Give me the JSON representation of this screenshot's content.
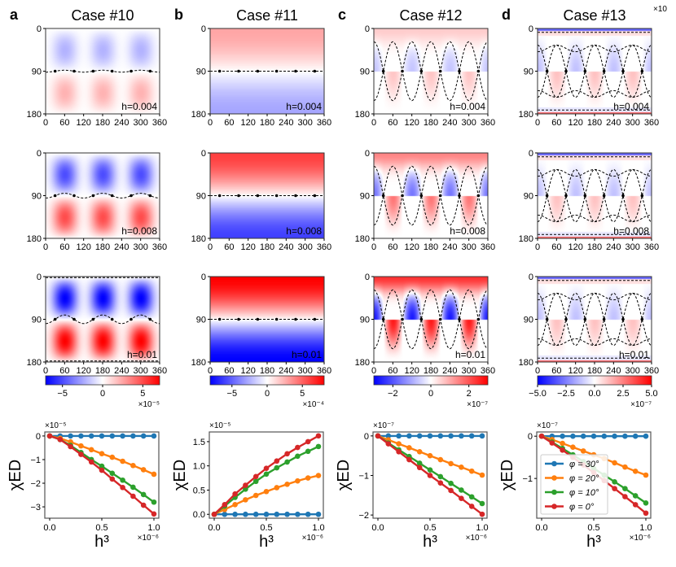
{
  "colormap": {
    "low": "#0000ff",
    "mid": "#ffffff",
    "high": "#ff0000"
  },
  "heatmap_axes": {
    "x_ticks": [
      0,
      60,
      120,
      180,
      240,
      300,
      360
    ],
    "x_tick_labels": [
      "0",
      "60",
      "120",
      "180",
      "240",
      "300",
      "360"
    ],
    "y_ticks": [
      0,
      90,
      180
    ],
    "y_tick_labels": [
      "0",
      "90",
      "180"
    ]
  },
  "panels": [
    {
      "label": "a",
      "title": "Case #10",
      "heatmaps": [
        {
          "h_label": "h=0.004"
        },
        {
          "h_label": "h=0.008"
        },
        {
          "h_label": "h=0.01"
        }
      ],
      "colorbar": {
        "range": [
          -7.1,
          7.1
        ],
        "ticks": [
          -5,
          0,
          5
        ],
        "tick_labels": [
          "−5",
          "0",
          "5"
        ],
        "exponent": "×10⁻⁵"
      }
    },
    {
      "label": "b",
      "title": "Case #11",
      "heatmaps": [
        {
          "h_label": "h=0.004"
        },
        {
          "h_label": "h=0.008"
        },
        {
          "h_label": "h=0.01"
        }
      ],
      "colorbar": {
        "range": [
          -8.1,
          8.1
        ],
        "ticks": [
          -5,
          0,
          5
        ],
        "tick_labels": [
          "−5",
          "0",
          "5"
        ],
        "exponent": "×10⁻⁴"
      }
    },
    {
      "label": "c",
      "title": "Case #12",
      "heatmaps": [
        {
          "h_label": "h=0.004"
        },
        {
          "h_label": "h=0.008"
        },
        {
          "h_label": "h=0.01"
        }
      ],
      "colorbar": {
        "range": [
          -3,
          3
        ],
        "ticks": [
          -2,
          0,
          2
        ],
        "tick_labels": [
          "−2",
          "0",
          "2"
        ],
        "exponent": "×10⁻⁷"
      }
    },
    {
      "label": "d",
      "title": "Case #13",
      "top_offset": "×10",
      "heatmaps": [
        {
          "h_label": "h=0.004"
        },
        {
          "h_label": "h=0.008"
        },
        {
          "h_label": "h=0.01"
        }
      ],
      "colorbar": {
        "range": [
          -5,
          5
        ],
        "ticks": [
          -5,
          -2.5,
          0,
          2.5,
          5
        ],
        "tick_labels": [
          "−5.0",
          "−2.5",
          "0.0",
          "2.5",
          "5.0"
        ],
        "exponent": "×10⁻⁷"
      }
    }
  ],
  "series_colors": {
    "phi30": "#1f77b4",
    "phi20": "#ff7f0e",
    "phi10": "#2ca02c",
    "phi0": "#d62728"
  },
  "chart_data": [
    {
      "type": "line",
      "panel": "a",
      "xlabel": "h³",
      "ylabel": "χED",
      "x_offset": "×10⁻⁶",
      "y_offset": "×10⁻⁵",
      "xlim": [
        -0.047,
        1.047
      ],
      "ylim": [
        -3.48,
        0.17
      ],
      "grid": false,
      "x_ticks": [
        0,
        0.5,
        1.0
      ],
      "x_tick_labels": [
        "0.0",
        "0.5",
        "1.0"
      ],
      "y_ticks": [
        0,
        -1,
        -2,
        -3
      ],
      "y_tick_labels": [
        "0",
        "−1",
        "−2",
        "−3"
      ],
      "x": [
        0,
        0.1,
        0.2,
        0.3,
        0.4,
        0.5,
        0.6,
        0.7,
        0.8,
        0.9,
        1.0
      ],
      "series": [
        {
          "name": "φ = 30°",
          "values": [
            0,
            0,
            0,
            0,
            0,
            0,
            0,
            0,
            0,
            0,
            0
          ]
        },
        {
          "name": "φ = 20°",
          "values": [
            0,
            -0.1,
            -0.25,
            -0.42,
            -0.58,
            -0.75,
            -0.9,
            -1.07,
            -1.25,
            -1.43,
            -1.62
          ]
        },
        {
          "name": "φ = 10°",
          "values": [
            0,
            -0.15,
            -0.4,
            -0.7,
            -1.0,
            -1.28,
            -1.58,
            -1.87,
            -2.17,
            -2.48,
            -2.8
          ]
        },
        {
          "name": "φ = 0°",
          "values": [
            0,
            -0.15,
            -0.45,
            -0.78,
            -1.1,
            -1.45,
            -1.82,
            -2.18,
            -2.55,
            -2.93,
            -3.3
          ]
        }
      ]
    },
    {
      "type": "line",
      "panel": "b",
      "xlabel": "h³",
      "ylabel": "χED",
      "x_offset": "×10⁻⁶",
      "y_offset": "×10⁻⁵",
      "xlim": [
        -0.047,
        1.047
      ],
      "ylim": [
        -0.08,
        1.7
      ],
      "grid": false,
      "x_ticks": [
        0,
        0.5,
        1.0
      ],
      "x_tick_labels": [
        "0.0",
        "0.5",
        "1.0"
      ],
      "y_ticks": [
        0,
        0.5,
        1.0,
        1.5
      ],
      "y_tick_labels": [
        "0.0",
        "0.5",
        "1.0",
        "1.5"
      ],
      "x": [
        0,
        0.1,
        0.2,
        0.3,
        0.4,
        0.5,
        0.6,
        0.7,
        0.8,
        0.9,
        1.0
      ],
      "series": [
        {
          "name": "φ = 30°",
          "values": [
            0,
            0,
            0,
            0,
            0,
            0,
            0,
            0,
            0,
            0,
            0
          ]
        },
        {
          "name": "φ = 20°",
          "values": [
            0,
            0.1,
            0.2,
            0.3,
            0.39,
            0.47,
            0.55,
            0.62,
            0.69,
            0.75,
            0.8
          ]
        },
        {
          "name": "φ = 10°",
          "values": [
            0,
            0.17,
            0.35,
            0.52,
            0.68,
            0.83,
            0.96,
            1.08,
            1.2,
            1.3,
            1.4
          ]
        },
        {
          "name": "φ = 0°",
          "values": [
            0,
            0.2,
            0.42,
            0.6,
            0.78,
            0.95,
            1.1,
            1.25,
            1.38,
            1.5,
            1.62
          ]
        }
      ]
    },
    {
      "type": "line",
      "panel": "c",
      "xlabel": "h³",
      "ylabel": "χED",
      "x_offset": "×10⁻⁶",
      "y_offset": "×10⁻⁷",
      "xlim": [
        -0.047,
        1.047
      ],
      "ylim": [
        -2.08,
        0.1
      ],
      "grid": false,
      "x_ticks": [
        0,
        0.5,
        1.0
      ],
      "x_tick_labels": [
        "0.0",
        "0.5",
        "1.0"
      ],
      "y_ticks": [
        0,
        -1,
        -2
      ],
      "y_tick_labels": [
        "0",
        "−1",
        "−2"
      ],
      "x": [
        0,
        0.1,
        0.2,
        0.3,
        0.4,
        0.5,
        0.6,
        0.7,
        0.8,
        0.9,
        1.0
      ],
      "series": [
        {
          "name": "φ = 30°",
          "values": [
            0,
            0,
            0,
            0,
            0,
            0,
            0,
            0,
            0,
            0,
            0
          ]
        },
        {
          "name": "φ = 20°",
          "values": [
            0,
            -0.1,
            -0.2,
            -0.3,
            -0.4,
            -0.5,
            -0.6,
            -0.7,
            -0.79,
            -0.89,
            -0.99
          ]
        },
        {
          "name": "φ = 10°",
          "values": [
            0,
            -0.18,
            -0.35,
            -0.52,
            -0.69,
            -0.86,
            -1.03,
            -1.2,
            -1.37,
            -1.54,
            -1.71
          ]
        },
        {
          "name": "φ = 0°",
          "values": [
            0,
            -0.2,
            -0.4,
            -0.6,
            -0.8,
            -1.0,
            -1.19,
            -1.38,
            -1.58,
            -1.78,
            -1.98
          ]
        }
      ]
    },
    {
      "type": "line",
      "panel": "d",
      "xlabel": "h³",
      "ylabel": "χED",
      "x_offset": "×10⁻⁶",
      "y_offset": "×10⁻⁷",
      "xlim": [
        -0.047,
        1.047
      ],
      "ylim": [
        -1.94,
        0.1
      ],
      "grid": false,
      "legend": "center-left",
      "x_ticks": [
        0,
        0.5,
        1.0
      ],
      "x_tick_labels": [
        "0.0",
        "0.5",
        "1.0"
      ],
      "y_ticks": [
        0,
        -1
      ],
      "y_tick_labels": [
        "0",
        "−1"
      ],
      "x": [
        0,
        0.1,
        0.2,
        0.3,
        0.4,
        0.5,
        0.6,
        0.7,
        0.8,
        0.9,
        1.0
      ],
      "series": [
        {
          "name": "φ = 30°",
          "values": [
            0,
            0,
            0,
            0,
            0,
            0,
            0,
            0,
            0,
            0,
            0
          ]
        },
        {
          "name": "φ = 20°",
          "values": [
            0,
            -0.08,
            -0.17,
            -0.26,
            -0.35,
            -0.44,
            -0.53,
            -0.63,
            -0.73,
            -0.83,
            -0.92
          ]
        },
        {
          "name": "φ = 10°",
          "values": [
            0,
            -0.14,
            -0.29,
            -0.44,
            -0.6,
            -0.76,
            -0.92,
            -1.08,
            -1.24,
            -1.41,
            -1.58
          ]
        },
        {
          "name": "φ = 0°",
          "values": [
            0,
            -0.16,
            -0.33,
            -0.5,
            -0.68,
            -0.86,
            -1.05,
            -1.24,
            -1.43,
            -1.62,
            -1.82
          ]
        }
      ]
    }
  ]
}
